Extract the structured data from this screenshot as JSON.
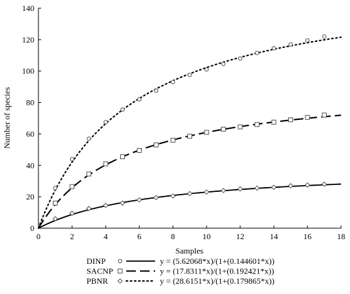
{
  "chart_data": {
    "type": "scatter",
    "xlabel": "Samples",
    "ylabel": "Number of species",
    "xlim": [
      0,
      18
    ],
    "ylim": [
      0,
      140
    ],
    "x_ticks": [
      "0",
      "2",
      "4",
      "6",
      "8",
      "10",
      "12",
      "14",
      "16",
      "18"
    ],
    "y_ticks": [
      "0",
      "20",
      "40",
      "60",
      "80",
      "100",
      "120",
      "140"
    ],
    "legend_position": "bottom",
    "series": [
      {
        "name": "DINP",
        "marker": "circle",
        "line_style": "solid",
        "equation": "y = (5.62068*x)/(1+(0.144601*x))",
        "fit": {
          "a": 5.62068,
          "b": 0.144601
        },
        "x": [
          1,
          2,
          3,
          4,
          5,
          6,
          7,
          8,
          9,
          10,
          11,
          12,
          13,
          14,
          15,
          16,
          17
        ],
        "values": [
          25.5,
          44,
          57,
          67.5,
          75.5,
          82,
          87.5,
          93,
          97.5,
          101,
          104.5,
          108,
          111.5,
          114.5,
          117,
          119.5,
          122
        ]
      },
      {
        "name": "SACNP",
        "marker": "square",
        "line_style": "dashed",
        "equation": "y = (17.8311*x)/(1+(0.192421*x))",
        "fit": {
          "a": 17.8311,
          "b": 0.192421
        },
        "x": [
          1,
          2,
          3,
          4,
          5,
          6,
          7,
          8,
          9,
          10,
          11,
          12,
          13,
          14,
          15,
          16,
          17
        ],
        "values": [
          16,
          26.5,
          34.5,
          41,
          45.5,
          49.5,
          53,
          56,
          58.5,
          61,
          63,
          64.5,
          66,
          67.5,
          69,
          70.5,
          72
        ]
      },
      {
        "name": "PBNR",
        "marker": "diamond",
        "line_style": "dotted",
        "equation": "y = (28.6151*x)/(1+(0.179865*x))",
        "fit": {
          "a": 28.6151,
          "b": 0.179865
        },
        "x": [
          1,
          2,
          3,
          4,
          5,
          6,
          7,
          8,
          9,
          10,
          11,
          12,
          13,
          14,
          15,
          16,
          17
        ],
        "values": [
          6,
          9.5,
          12.5,
          14.5,
          16,
          18,
          19.5,
          20.5,
          22,
          23,
          24,
          25,
          25.5,
          26,
          27,
          27.5,
          28
        ]
      }
    ]
  }
}
